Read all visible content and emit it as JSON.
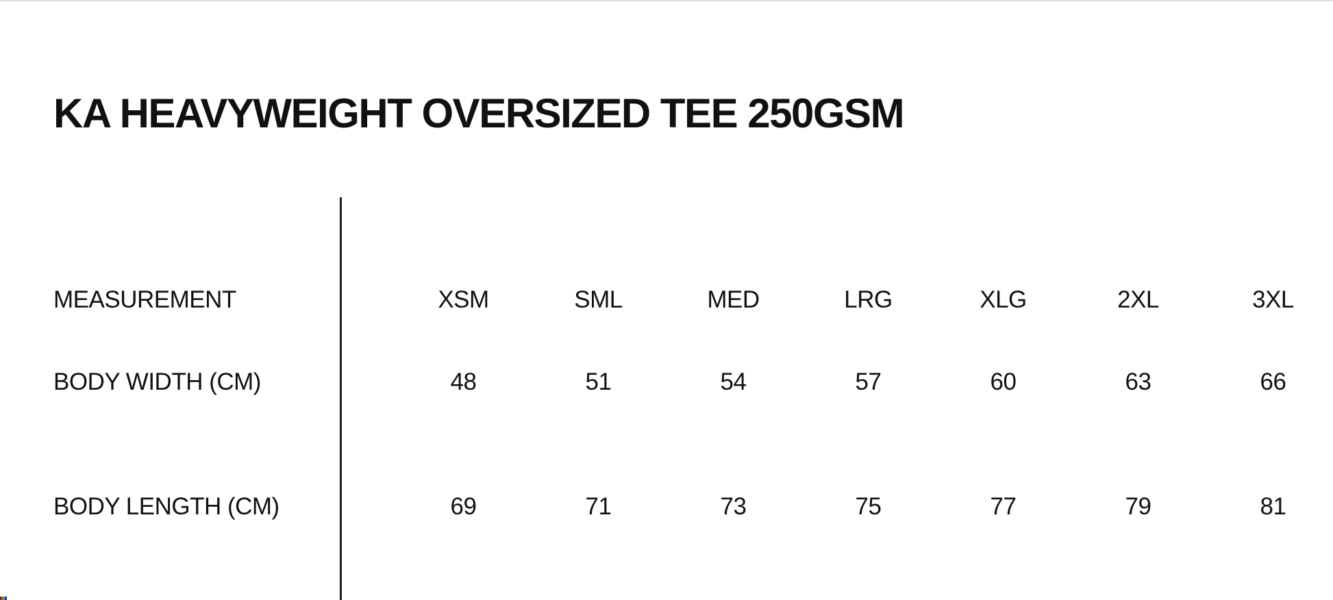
{
  "page": {
    "background_color": "#ffffff",
    "text_color": "#111111",
    "divider_color": "#1b1b1b",
    "top_edge_color": "#dcdcde"
  },
  "chart_data": {
    "type": "table",
    "title": "KA HEAVYWEIGHT OVERSIZED TEE 250GSM",
    "columns": [
      "MEASUREMENT",
      "XSM",
      "SML",
      "MED",
      "LRG",
      "XLG",
      "2XL",
      "3XL"
    ],
    "rows": [
      {
        "label": "BODY WIDTH (CM)",
        "values": [
          48,
          51,
          54,
          57,
          60,
          63,
          66
        ]
      },
      {
        "label": "BODY LENGTH (CM)",
        "values": [
          69,
          71,
          73,
          75,
          77,
          79,
          81
        ]
      }
    ],
    "layout": {
      "grid": "off",
      "label_column_separator": "vertical-line",
      "units": "cm"
    }
  },
  "corner_artifact_colors": [
    "#7a1f1f",
    "#d94f3d",
    "#3fae5a",
    "#2e6fd9",
    "#23242c"
  ]
}
